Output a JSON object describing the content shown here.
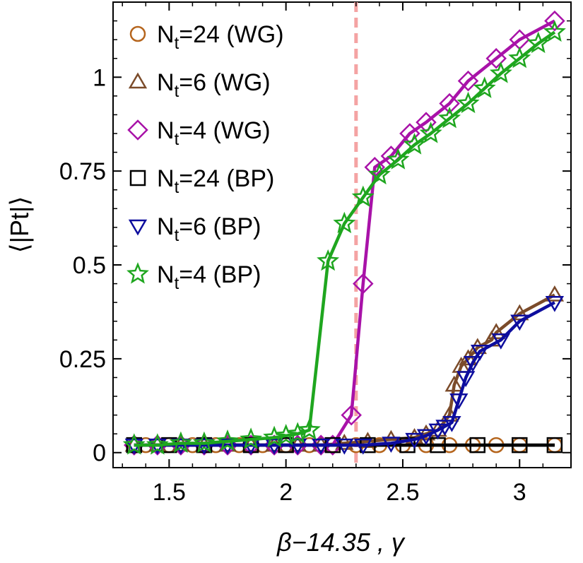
{
  "chart_data": {
    "type": "line",
    "xlabel": "β−14.35 , γ",
    "ylabel": "⟨|Pt|⟩",
    "xlim": [
      1.26,
      3.22
    ],
    "ylim": [
      -0.04,
      1.2
    ],
    "xticks": [
      1.5,
      2,
      2.5,
      3
    ],
    "xtick_labels": [
      "1.5",
      "2",
      "2.5",
      "3"
    ],
    "yticks": [
      0,
      0.25,
      0.5,
      0.75,
      1
    ],
    "ytick_labels": [
      "0",
      "0.25",
      "0.5",
      "0.75",
      "1"
    ],
    "grid": false,
    "legend_position": "top-left",
    "reference_line": {
      "x": 2.3,
      "color": "#f4a3a3",
      "style": "dashed"
    },
    "series": [
      {
        "name": "Nt=24 (WG)",
        "color": "#b5651d",
        "marker": "circle",
        "line_color": "#000000",
        "x": [
          1.4,
          1.5,
          1.6,
          1.7,
          1.8,
          1.9,
          2.0,
          2.1,
          2.2,
          2.3,
          2.4,
          2.5,
          2.6,
          2.7,
          2.8,
          2.9,
          3.0,
          3.15
        ],
        "y": [
          0.02,
          0.02,
          0.02,
          0.02,
          0.02,
          0.02,
          0.02,
          0.02,
          0.02,
          0.02,
          0.02,
          0.02,
          0.02,
          0.02,
          0.02,
          0.02,
          0.02,
          0.02
        ]
      },
      {
        "name": "Nt=6 (WG)",
        "color": "#7b4b2a",
        "marker": "triangle-up",
        "line_color": "#7b4b2a",
        "x": [
          1.35,
          1.45,
          1.55,
          1.65,
          1.75,
          1.85,
          1.95,
          2.05,
          2.15,
          2.25,
          2.35,
          2.45,
          2.55,
          2.6,
          2.65,
          2.7,
          2.72,
          2.75,
          2.78,
          2.82,
          2.88,
          2.9,
          3.0,
          3.15
        ],
        "y": [
          0.02,
          0.02,
          0.02,
          0.02,
          0.02,
          0.02,
          0.02,
          0.02,
          0.02,
          0.025,
          0.03,
          0.035,
          0.04,
          0.05,
          0.06,
          0.1,
          0.18,
          0.23,
          0.25,
          0.28,
          0.3,
          0.32,
          0.37,
          0.42
        ]
      },
      {
        "name": "Nt=4 (WG)",
        "color": "#a812a8",
        "marker": "diamond",
        "line_color": "#a812a8",
        "x": [
          1.35,
          1.45,
          1.55,
          1.65,
          1.75,
          1.85,
          1.95,
          2.05,
          2.15,
          2.2,
          2.28,
          2.33,
          2.38,
          2.45,
          2.53,
          2.6,
          2.7,
          2.78,
          2.9,
          3.0,
          3.15
        ],
        "y": [
          0.02,
          0.02,
          0.02,
          0.02,
          0.02,
          0.02,
          0.02,
          0.02,
          0.02,
          0.02,
          0.1,
          0.45,
          0.76,
          0.79,
          0.85,
          0.88,
          0.93,
          0.99,
          1.05,
          1.1,
          1.15
        ]
      },
      {
        "name": "Nt=24 (BP)",
        "color": "#000000",
        "marker": "square",
        "line_color": "#000000",
        "x": [
          1.35,
          1.5,
          1.65,
          1.85,
          2.0,
          2.2,
          2.35,
          2.52,
          2.65,
          2.82,
          3.0,
          3.15
        ],
        "y": [
          0.02,
          0.02,
          0.02,
          0.02,
          0.02,
          0.02,
          0.02,
          0.02,
          0.02,
          0.02,
          0.02,
          0.02
        ]
      },
      {
        "name": "Nt=6 (BP)",
        "color": "#0d0d9e",
        "marker": "triangle-down",
        "line_color": "#0d0d9e",
        "x": [
          1.35,
          1.45,
          1.55,
          1.65,
          1.75,
          1.85,
          1.95,
          2.05,
          2.15,
          2.25,
          2.33,
          2.45,
          2.55,
          2.6,
          2.65,
          2.68,
          2.71,
          2.74,
          2.77,
          2.8,
          2.83,
          2.92,
          3.0,
          3.15
        ],
        "y": [
          0.02,
          0.02,
          0.02,
          0.02,
          0.02,
          0.02,
          0.02,
          0.02,
          0.02,
          0.02,
          0.02,
          0.025,
          0.035,
          0.045,
          0.06,
          0.07,
          0.08,
          0.14,
          0.2,
          0.24,
          0.27,
          0.3,
          0.35,
          0.4
        ]
      },
      {
        "name": "Nt=4 (BP)",
        "color": "#1fa61f",
        "marker": "star",
        "line_color": "#1fa61f",
        "x": [
          1.35,
          1.45,
          1.55,
          1.65,
          1.75,
          1.85,
          1.95,
          2.0,
          2.05,
          2.1,
          2.18,
          2.25,
          2.33,
          2.4,
          2.48,
          2.55,
          2.62,
          2.7,
          2.78,
          2.85,
          2.92,
          3.0,
          3.08,
          3.15
        ],
        "y": [
          0.02,
          0.02,
          0.025,
          0.025,
          0.03,
          0.035,
          0.04,
          0.045,
          0.05,
          0.06,
          0.51,
          0.61,
          0.68,
          0.74,
          0.78,
          0.82,
          0.85,
          0.89,
          0.93,
          0.97,
          1.01,
          1.05,
          1.09,
          1.12
        ]
      }
    ]
  }
}
